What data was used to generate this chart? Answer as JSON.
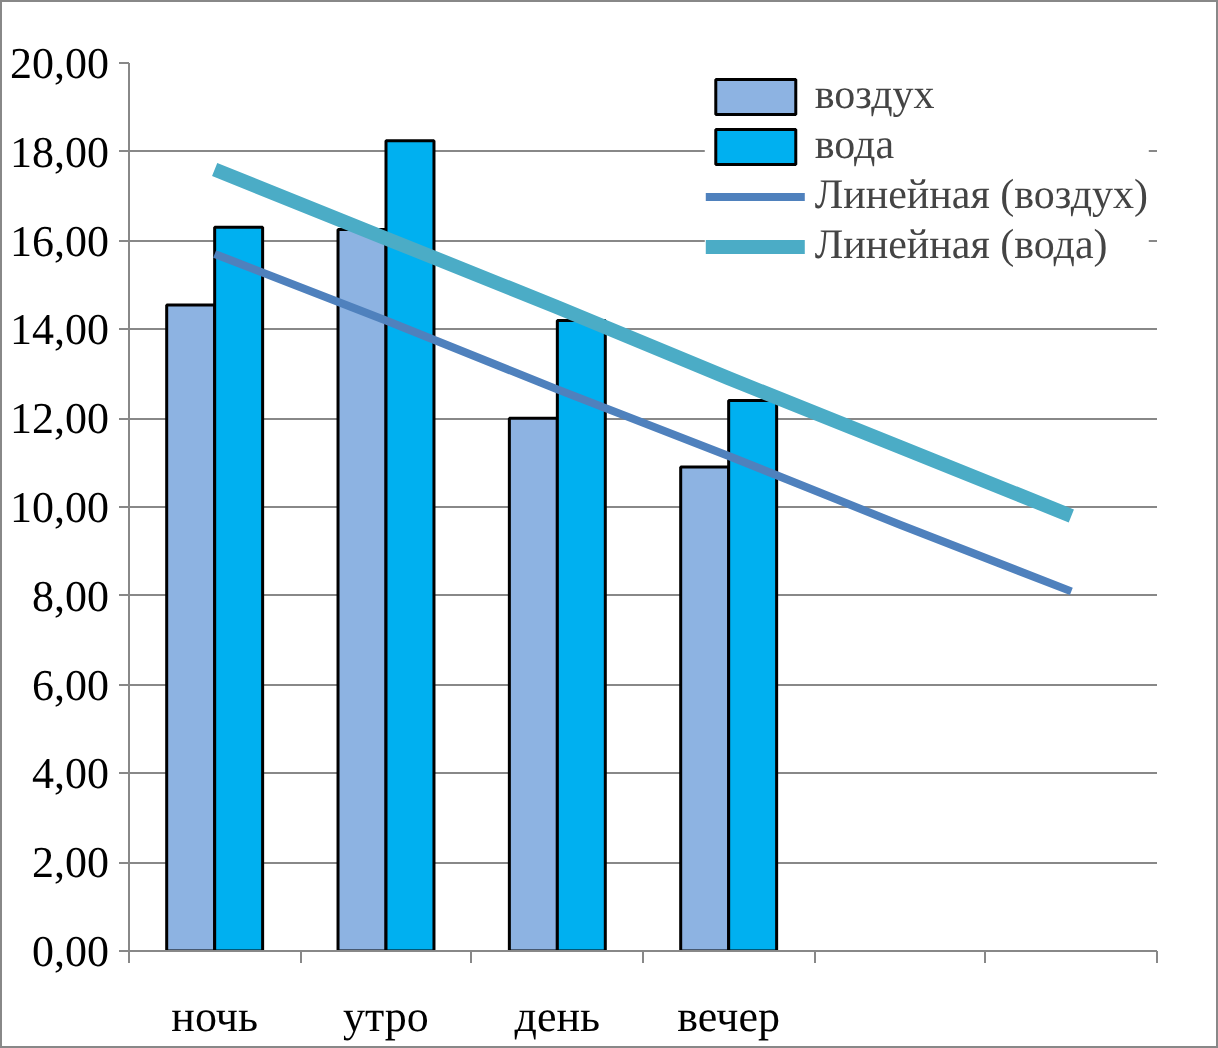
{
  "chart_data": {
    "type": "bar",
    "categories": [
      "ночь",
      "утро",
      "день",
      "вечер",
      null,
      null
    ],
    "series": [
      {
        "name": "воздух",
        "color": "#8db3e2",
        "values": [
          14.55,
          16.25,
          12.0,
          10.9,
          null,
          null
        ]
      },
      {
        "name": "вода",
        "color": "#00b0f0",
        "values": [
          16.3,
          18.25,
          14.2,
          12.4,
          null,
          null
        ]
      },
      {
        "name": "Линейная (воздух)",
        "type": "line",
        "color": "#4f81bd",
        "values": [
          15.7,
          14.2,
          12.65,
          11.15,
          9.6,
          8.1
        ]
      },
      {
        "name": "Линейная (вода)",
        "type": "line",
        "color": "#4bacc6",
        "values": [
          17.6,
          16.05,
          14.5,
          12.9,
          11.35,
          9.8
        ]
      }
    ],
    "ylim": [
      0,
      20
    ],
    "yticks": [
      {
        "value": 0,
        "label": "0,00"
      },
      {
        "value": 2,
        "label": "2,00"
      },
      {
        "value": 4,
        "label": "4,00"
      },
      {
        "value": 6,
        "label": "6,00"
      },
      {
        "value": 8,
        "label": "8,00"
      },
      {
        "value": 10,
        "label": "10,00"
      },
      {
        "value": 12,
        "label": "12,00"
      },
      {
        "value": 14,
        "label": "14,00"
      },
      {
        "value": 16,
        "label": "16,00"
      },
      {
        "value": 18,
        "label": "18,00"
      },
      {
        "value": 20,
        "label": "20,00"
      }
    ],
    "grid": "y",
    "legend": "top right"
  }
}
